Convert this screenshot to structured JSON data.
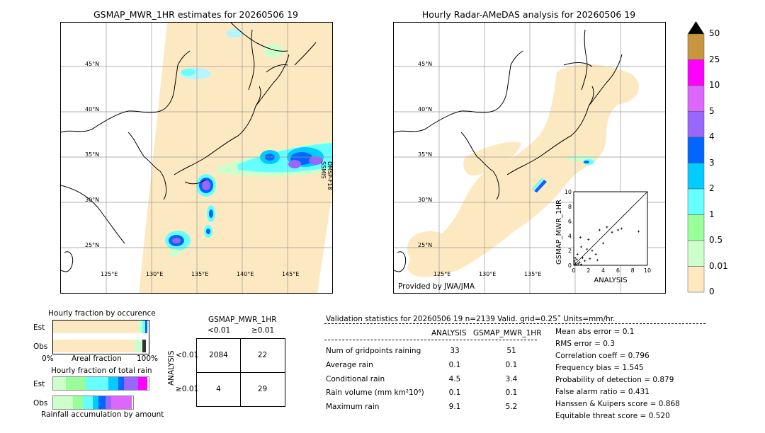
{
  "left_map": {
    "title": "GSMAP_MWR_1HR estimates for 20260506 19",
    "lat_labels": [
      "45°N",
      "40°N",
      "35°N",
      "30°N",
      "25°N"
    ],
    "lon_labels": [
      "125°E",
      "130°E",
      "135°E",
      "140°E",
      "145°E"
    ],
    "sat_label_1": "DMSP-F18",
    "sat_label_2": "SSMIS"
  },
  "right_map": {
    "title": "Hourly Radar-AMeDAS analysis for 20260506 19",
    "lat_labels": [
      "45°N",
      "40°N",
      "35°N",
      "30°N",
      "25°N"
    ],
    "lon_labels": [
      "125°E",
      "130°E",
      "135°E"
    ],
    "provider": "Provided by JWA/JMA"
  },
  "scatter": {
    "ylabel": "GSMAP_MWR_1HR",
    "xlabel": "ANALYSIS",
    "ticks": [
      "0",
      "2",
      "4",
      "6",
      "8",
      "10"
    ],
    "tick_top": "10"
  },
  "colorbar": {
    "labels": [
      "50",
      "25",
      "10",
      "5",
      "4",
      "3",
      "2",
      "1",
      "0.5",
      "0.01",
      "0"
    ],
    "colors": [
      "#c8963c",
      "#ff00ff",
      "#dd66ff",
      "#9966ff",
      "#0066ff",
      "#00ccff",
      "#66ffff",
      "#99ff99",
      "#ccffcc",
      "#ffe8c0"
    ]
  },
  "occurrence": {
    "title": "Hourly fraction by occurence",
    "row_est": "Est",
    "row_obs": "Obs",
    "axis_left": "0%",
    "axis_mid": "Areal fraction",
    "axis_right": "100%"
  },
  "total_rain": {
    "title": "Hourly fraction of total rain",
    "row_est": "Est",
    "row_obs": "Obs",
    "footer": "Rainfall accumulation by amount"
  },
  "contingency": {
    "title": "GSMAP_MWR_1HR",
    "col_lt": "<0.01",
    "col_ge": "≥0.01",
    "side_label": "ANALYSIS",
    "row_lt": "<0.01",
    "row_ge": "≥0.01",
    "a": "2084",
    "b": "22",
    "c": "4",
    "d": "29"
  },
  "validation": {
    "header": "Validation statistics for 20260506 19  n=2139 Valid. grid=0.25˚ Units=mm/hr.",
    "col_analysis": "ANALYSIS",
    "col_gsmap": "GSMAP_MWR_1HR",
    "rows": [
      {
        "label": "Num of gridpoints raining",
        "analysis": "33",
        "gsmap": "51"
      },
      {
        "label": "Average rain",
        "analysis": "0.1",
        "gsmap": "0.1"
      },
      {
        "label": "Conditional rain",
        "analysis": "4.5",
        "gsmap": "3.4"
      },
      {
        "label": "Rain volume (mm km²10⁶)",
        "analysis": "0.1",
        "gsmap": "0.1"
      },
      {
        "label": "Maximum rain",
        "analysis": "9.1",
        "gsmap": "5.2"
      }
    ],
    "scores": [
      "Mean abs error =    0.1",
      "RMS error =    0.3",
      "Correlation coeff =  0.796",
      "Frequency bias =  1.545",
      "Probability of detection =  0.879",
      "False alarm ratio =  0.431",
      "Hanssen & Kuipers score =  0.868",
      "Equitable threat score =  0.520"
    ]
  }
}
